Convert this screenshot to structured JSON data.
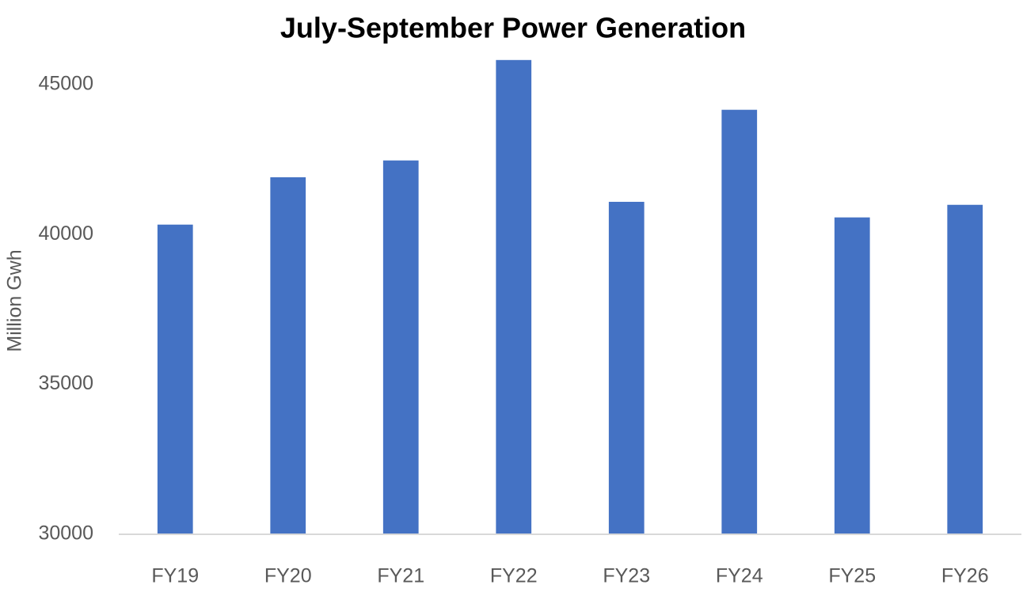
{
  "chart_data": {
    "type": "bar",
    "title": "July-September Power Generation",
    "y_label": "Million Gwh",
    "categories": [
      "FY19",
      "FY20",
      "FY21",
      "FY22",
      "FY23",
      "FY24",
      "FY25",
      "FY26"
    ],
    "values": [
      40330,
      41910,
      42470,
      45820,
      41090,
      44160,
      40570,
      40990
    ],
    "color": "#4472c4",
    "ylim": [
      30000,
      46000
    ],
    "yticks": [
      30000,
      35000,
      40000,
      45000
    ],
    "grid": false
  }
}
